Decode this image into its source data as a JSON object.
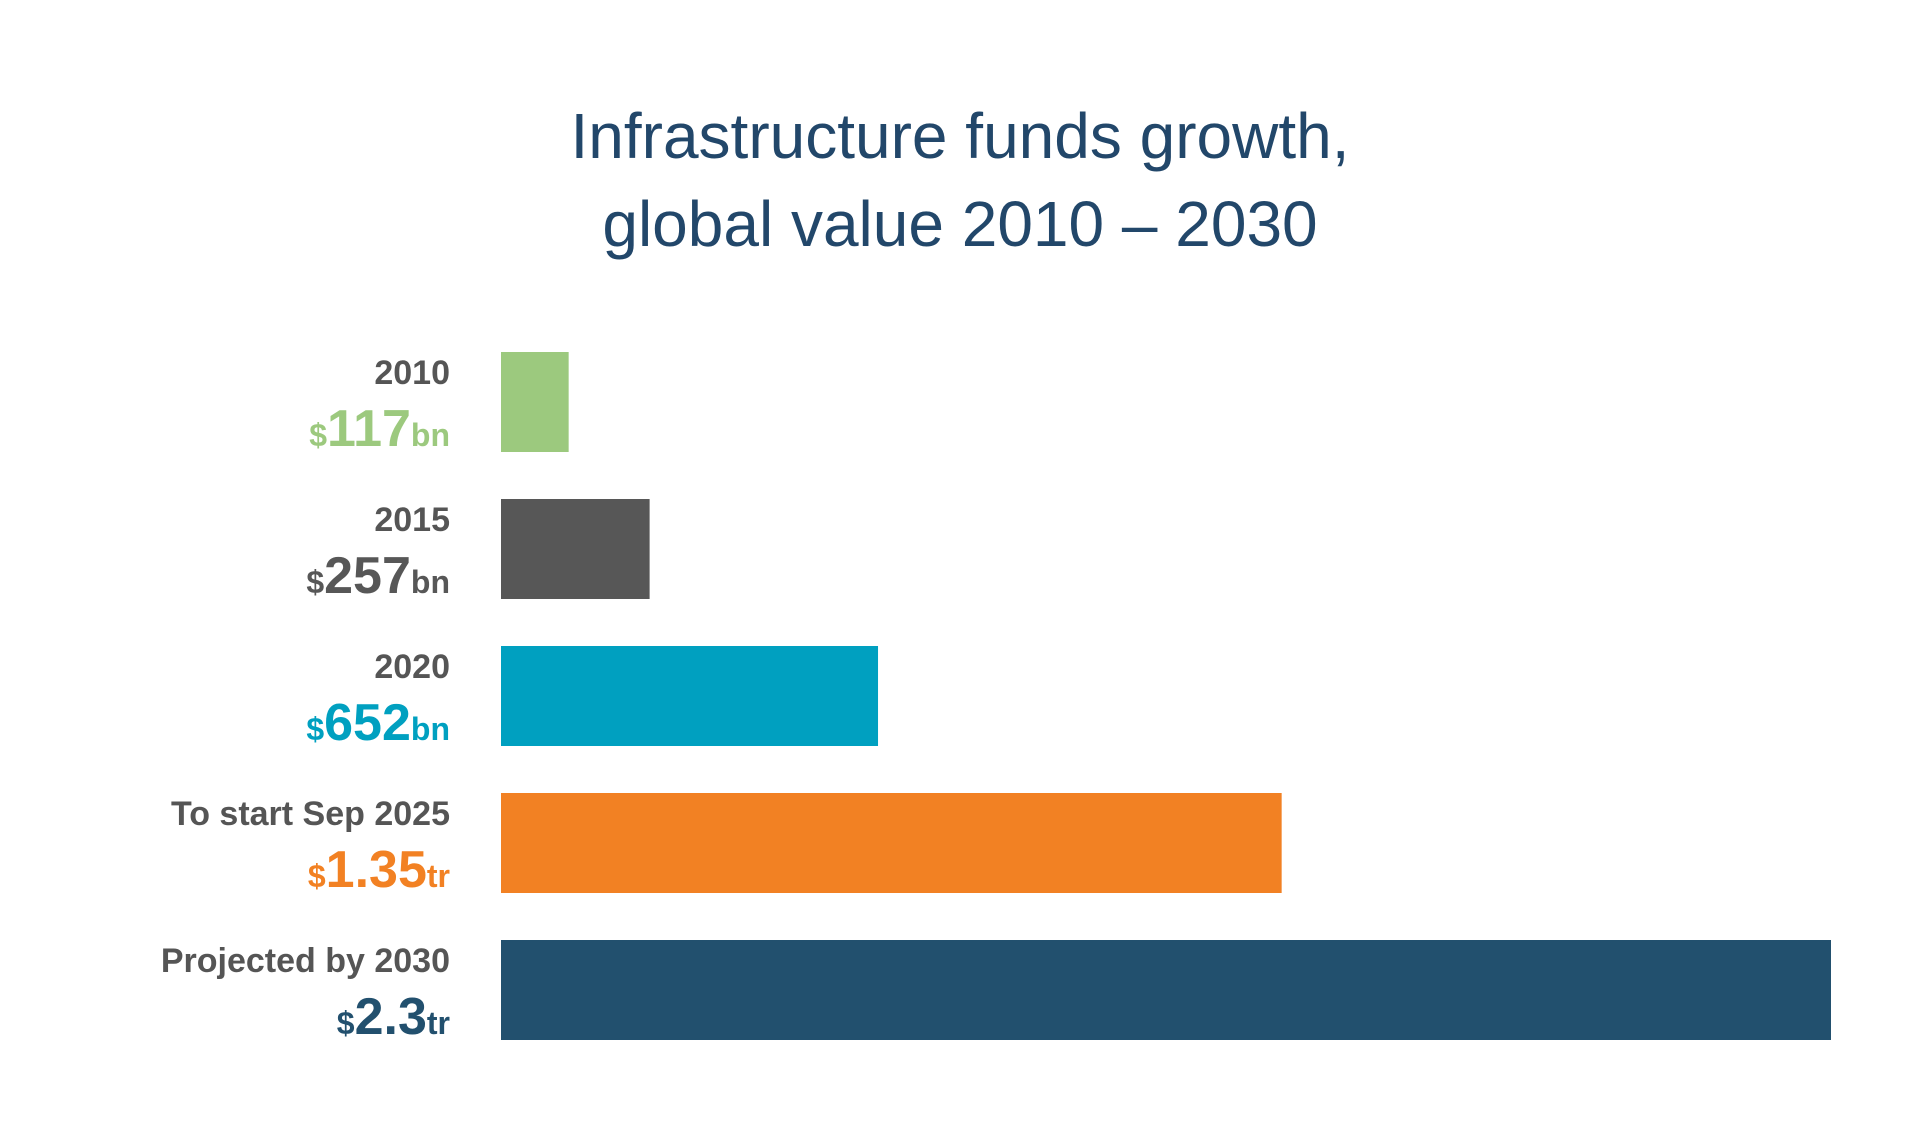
{
  "chart_data": {
    "type": "bar",
    "orientation": "horizontal",
    "title": [
      "Infrastructure funds growth,",
      "global value 2010 – 2030"
    ],
    "categories": [
      "2010",
      "2015",
      "2020",
      "To start Sep 2025",
      "Projected by 2030"
    ],
    "values": [
      117,
      257,
      652,
      1350,
      2300
    ],
    "value_labels": [
      "$117bn",
      "$257bn",
      "$652bn",
      "$1.35tr",
      "$2.3tr"
    ],
    "colors": [
      "#9cc97e",
      "#575757",
      "#00a0c0",
      "#f28123",
      "#22506e"
    ]
  }
}
